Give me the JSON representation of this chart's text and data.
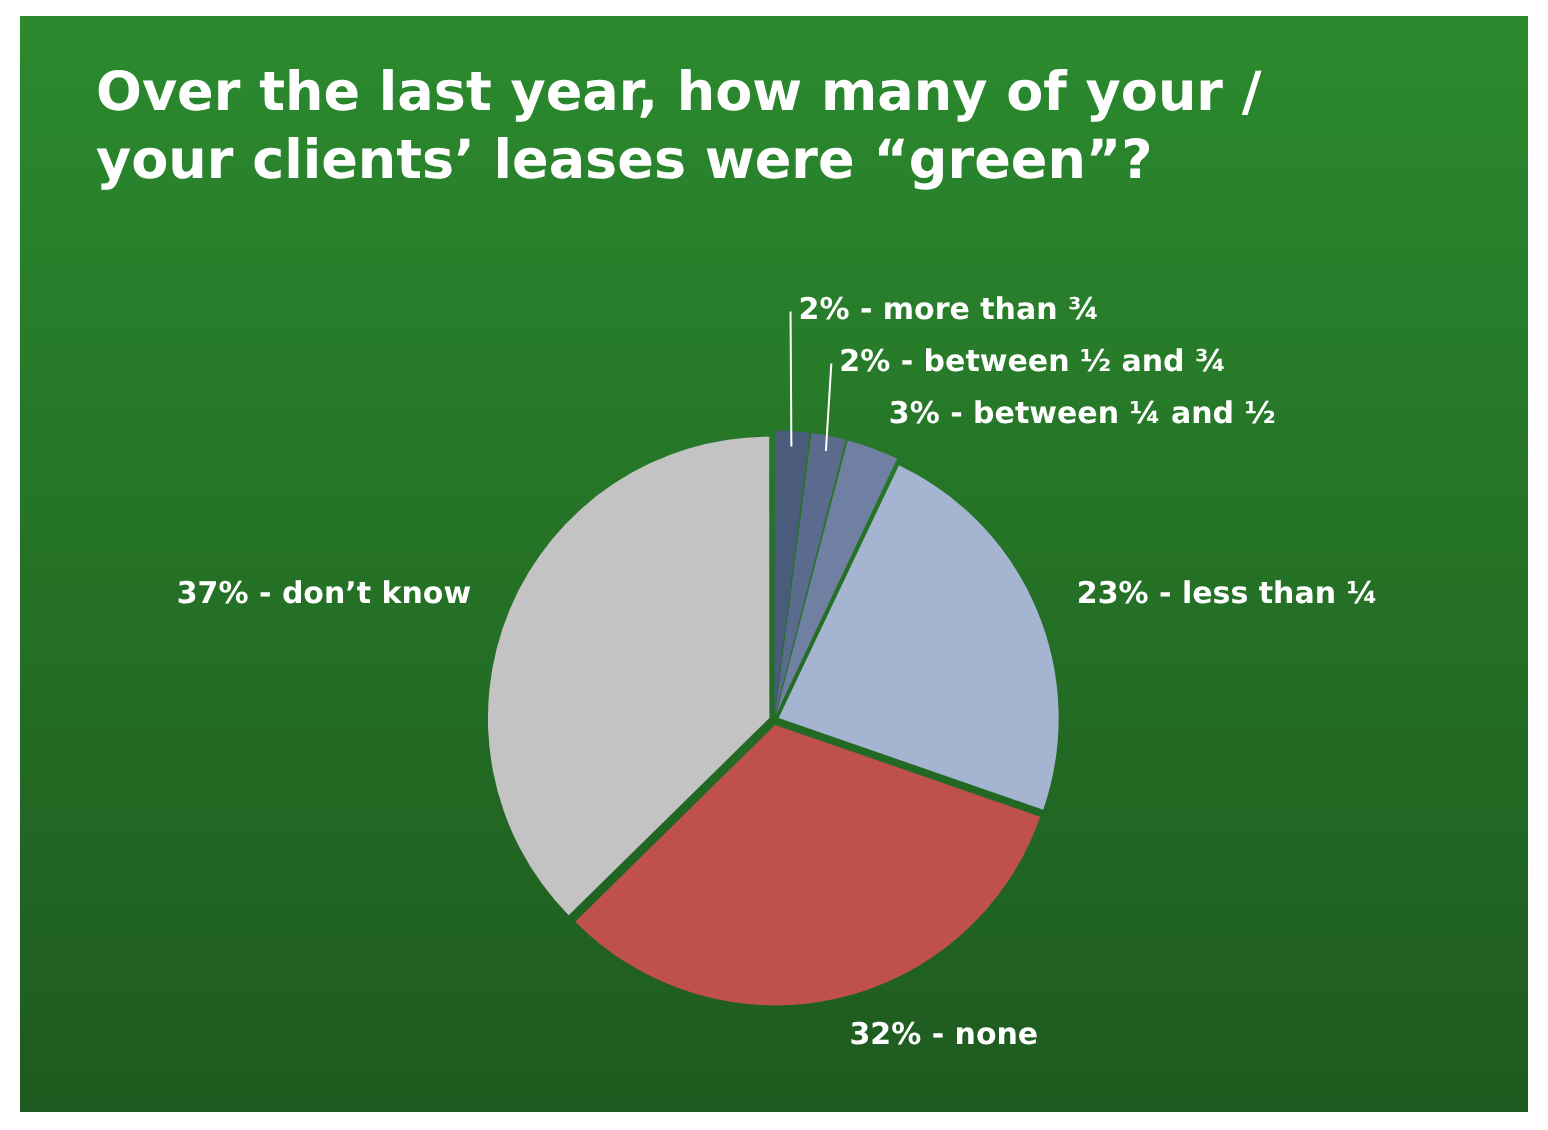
{
  "chart_data": {
    "type": "pie",
    "title": "Over the last year, how many of your / your clients’ leases were “green”?",
    "categories": [
      "more than ¾",
      "between ½ and ¾",
      "between ¼ and ½",
      "less than ¼",
      "none",
      "don’t know"
    ],
    "values": [
      2,
      2,
      3,
      23,
      32,
      37
    ],
    "value_labels": [
      "2%",
      "2%",
      "3%",
      "23%",
      "32%",
      "37%"
    ],
    "colors": [
      "#4b5b7c",
      "#5b6b8d",
      "#6f80a2",
      "#a5b4d0",
      "#c0504d",
      "#c3c3c3"
    ],
    "legend": false
  }
}
